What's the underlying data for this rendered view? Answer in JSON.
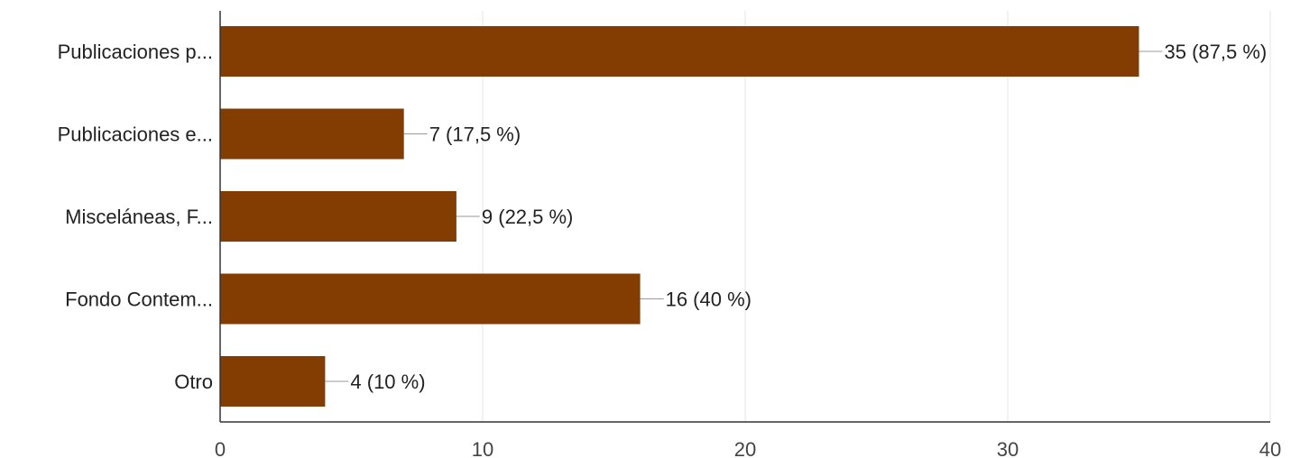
{
  "chart_data": {
    "type": "bar",
    "orientation": "horizontal",
    "categories": [
      "Publicaciones p...",
      "Publicaciones e...",
      "Misceláneas, F...",
      "Fondo Contem...",
      "Otro"
    ],
    "values": [
      35,
      7,
      9,
      16,
      4
    ],
    "value_labels": [
      "35 (87,5 %)",
      "7 (17,5 %)",
      "9 (22,5 %)",
      "16 (40 %)",
      "4 (10 %)"
    ],
    "xlim": [
      0,
      40
    ],
    "xticks": [
      0,
      10,
      20,
      30,
      40
    ],
    "grid": true,
    "bar_color": "#833d03",
    "grid_color": "#e6e6e6",
    "axis_color": "#333333",
    "leader_color": "#999999"
  }
}
